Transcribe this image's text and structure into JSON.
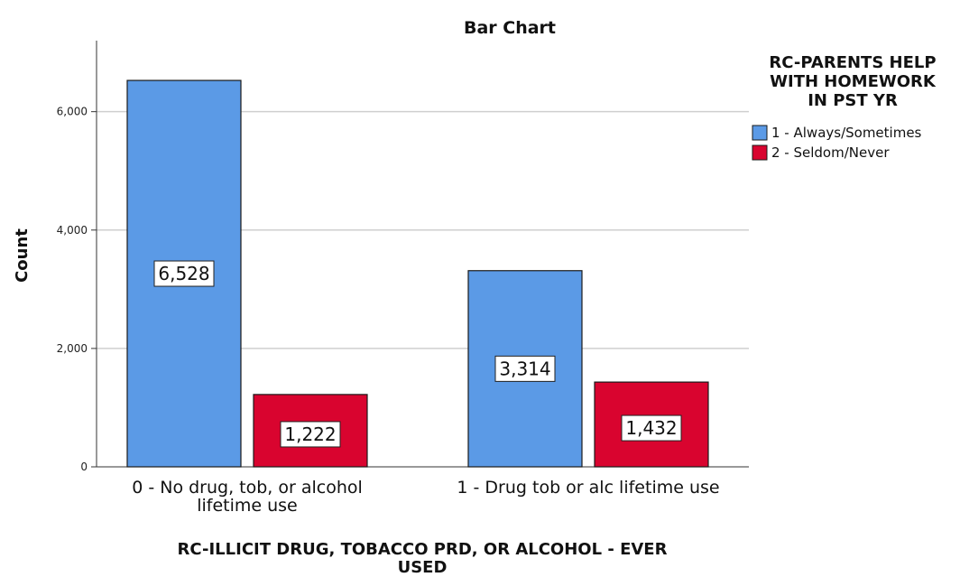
{
  "chart_data": {
    "type": "bar",
    "title": "Bar Chart",
    "xlabel": [
      "RC-ILLICIT DRUG, TOBACCO PRD, OR ALCOHOL - EVER",
      "USED"
    ],
    "ylabel": "Count",
    "ylim": [
      0,
      7200
    ],
    "yticks": [
      {
        "value": 0,
        "label": "0"
      },
      {
        "value": 2000,
        "label": "2,000"
      },
      {
        "value": 4000,
        "label": "4,000"
      },
      {
        "value": 6000,
        "label": "6,000"
      }
    ],
    "grid": true,
    "categories": [
      [
        "0 - No drug, tob, or alcohol",
        "lifetime use"
      ],
      [
        "1 - Drug tob or alc lifetime use"
      ]
    ],
    "legend": {
      "title": [
        "RC-PARENTS HELP",
        "WITH HOMEWORK",
        "IN PST YR"
      ],
      "placement": "right"
    },
    "series": [
      {
        "name": "1 - Always/Sometimes",
        "color": "#5b9ae6",
        "values": [
          6528,
          3314
        ],
        "labels": [
          "6,528",
          "3,314"
        ]
      },
      {
        "name": "2 - Seldom/Never",
        "color": "#d9042f",
        "values": [
          1222,
          1432
        ],
        "labels": [
          "1,222",
          "1,432"
        ]
      }
    ]
  }
}
